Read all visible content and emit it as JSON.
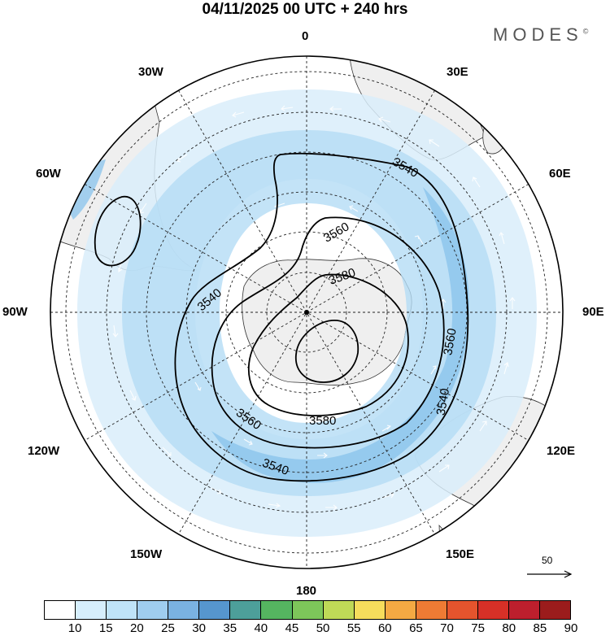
{
  "title": "04/11/2025  00 UTC  + 240 hrs",
  "brand": "MODES",
  "brand_mark": "©",
  "longitude_labels": {
    "top": "0",
    "bottom": "180",
    "left": "90W",
    "right": "90E",
    "nw": "30W",
    "ne": "30E",
    "wnw": "60W",
    "ene": "60E",
    "wsw": "120W",
    "ese": "120E",
    "sw": "150W",
    "se": "150E"
  },
  "contours": [
    {
      "value": "3540",
      "label": "3540"
    },
    {
      "value": "3560",
      "label": "3560"
    },
    {
      "value": "3580",
      "label": "3580"
    }
  ],
  "reference_vector": {
    "value": "50",
    "label": "50"
  },
  "colorbar": {
    "labels": [
      "10",
      "15",
      "20",
      "25",
      "30",
      "35",
      "40",
      "45",
      "50",
      "55",
      "60",
      "65",
      "70",
      "75",
      "80",
      "85",
      "90"
    ],
    "colors": [
      "#ffffff",
      "#d6eefc",
      "#bfe3f8",
      "#9fcdef",
      "#7ab2e1",
      "#5696ce",
      "#4d9f9a",
      "#55b560",
      "#7dc65a",
      "#bfd957",
      "#f6dd5c",
      "#f4a943",
      "#ee7b34",
      "#e5542d",
      "#d73027",
      "#bd1f2d",
      "#9b1c1c"
    ]
  },
  "colors": {
    "land": "#efefef",
    "wind_light": "#d9edfa",
    "wind_mid": "#b4dcf5",
    "wind_strong": "#8ec5ec"
  }
}
